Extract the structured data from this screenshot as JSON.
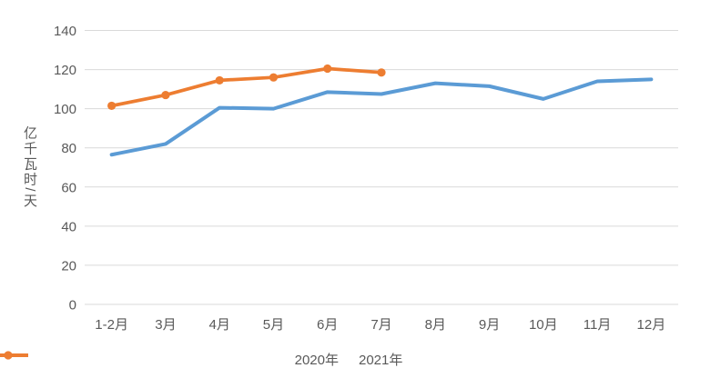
{
  "colors": {
    "series_2020": "#5B9BD5",
    "series_2021": "#ED7D31",
    "gridline": "#D9D9D9",
    "axis_line": "#D9D9D9",
    "label_text": "#595959",
    "background": "#FFFFFF"
  },
  "chart_data": {
    "type": "line",
    "title": "",
    "xlabel": "",
    "ylabel": "亿千瓦时/天",
    "categories": [
      "1-2月",
      "3月",
      "4月",
      "5月",
      "6月",
      "7月",
      "8月",
      "9月",
      "10月",
      "11月",
      "12月"
    ],
    "series": [
      {
        "name": "2020年",
        "color": "#5B9BD5",
        "marker": false,
        "values": [
          76.5,
          82,
          100.5,
          100,
          108.5,
          107.5,
          113,
          111.5,
          105,
          114,
          115
        ]
      },
      {
        "name": "2021年",
        "color": "#ED7D31",
        "marker": true,
        "values": [
          101.5,
          107,
          114.5,
          116,
          120.5,
          118.5
        ]
      }
    ],
    "ylim": [
      0,
      140
    ],
    "yticks": [
      0,
      20,
      40,
      60,
      80,
      100,
      120,
      140
    ],
    "grid": true,
    "legend_position": "bottom"
  }
}
